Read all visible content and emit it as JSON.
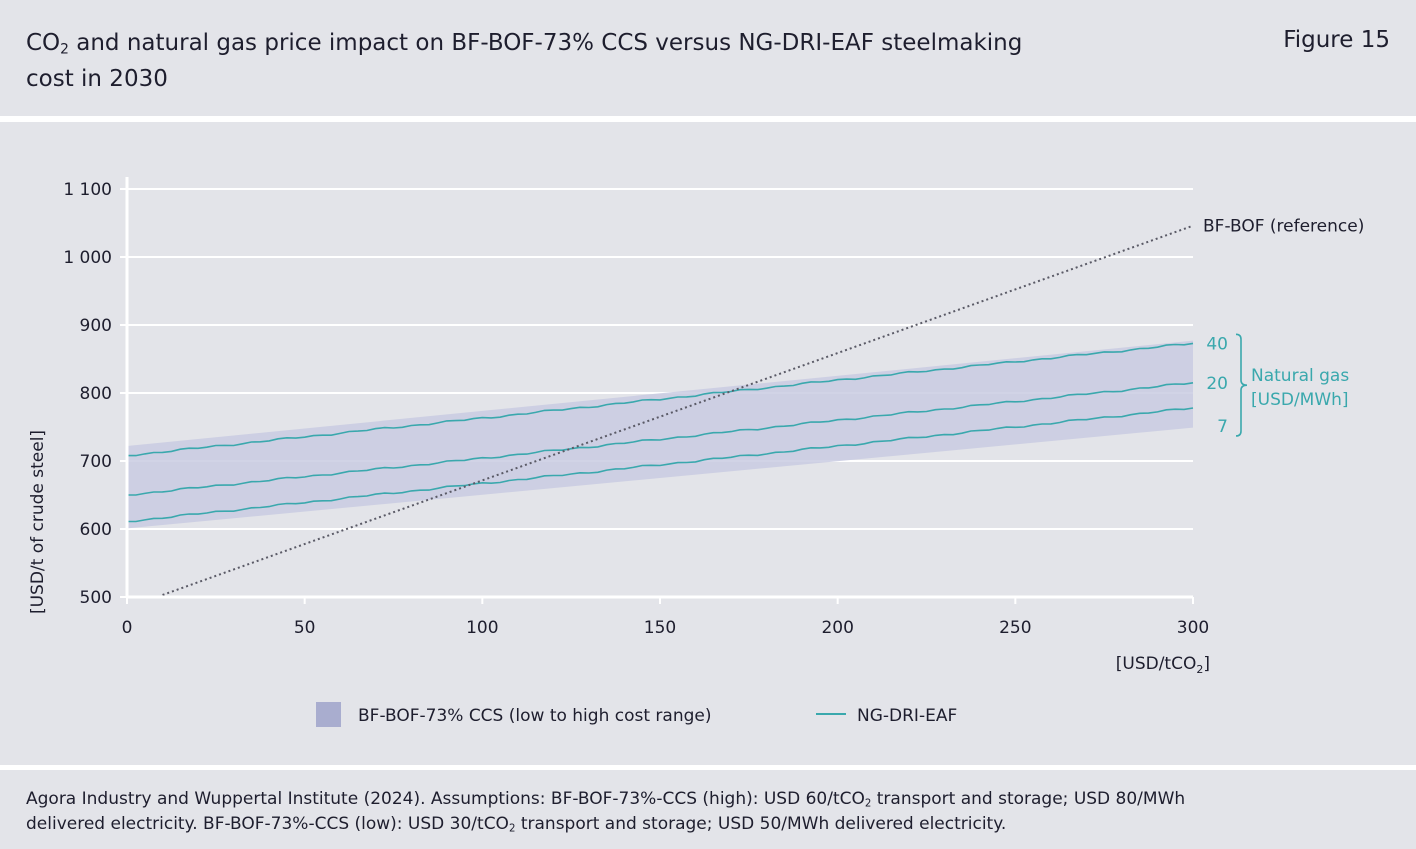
{
  "header": {
    "title_parts": [
      "CO",
      "2",
      " and natural gas price impact on BF-BOF-73% CCS versus NG-DRI-EAF steelmaking cost in 2030"
    ],
    "figure_label": "Figure 15"
  },
  "chart_data": {
    "type": "line",
    "xlabel": "[USD/tCO2]",
    "ylabel": "[USD/t of crude steel]",
    "xlim": [
      0,
      300
    ],
    "ylim": [
      500,
      1100
    ],
    "x_ticks": [
      0,
      50,
      100,
      150,
      200,
      250,
      300
    ],
    "x_tick_labels": [
      "0",
      "50",
      "100",
      "150",
      "200",
      "250",
      "300"
    ],
    "y_ticks": [
      500,
      600,
      700,
      800,
      900,
      1000,
      1100
    ],
    "y_tick_labels": [
      "500",
      "600",
      "700",
      "800",
      "900",
      "1 000",
      "1 100"
    ],
    "grid": "horizontal",
    "band": {
      "name": "BF-BOF-73% CCS (low to high cost range)",
      "x": [
        0,
        300
      ],
      "low": [
        601,
        749
      ],
      "high": [
        722,
        877
      ],
      "color": "#c9cbe2"
    },
    "series": [
      {
        "name": "NG-DRI-EAF",
        "label": "40",
        "x": [
          0,
          100,
          200,
          300
        ],
        "y": [
          708,
          763,
          819,
          873
        ],
        "color": "#3aa8ad"
      },
      {
        "name": "NG-DRI-EAF",
        "label": "20",
        "x": [
          0,
          100,
          200,
          300
        ],
        "y": [
          650,
          704,
          760,
          815
        ],
        "color": "#3aa8ad"
      },
      {
        "name": "NG-DRI-EAF",
        "label": "7",
        "x": [
          0,
          100,
          200,
          300
        ],
        "y": [
          611,
          667,
          722,
          778
        ],
        "color": "#3aa8ad"
      }
    ],
    "reference": {
      "name": "BF-BOF (reference)",
      "x": [
        10,
        300
      ],
      "y": [
        503,
        1046
      ],
      "color": "#5a5a66",
      "style": "dotted"
    },
    "bracket_label": [
      "Natural gas",
      "[USD/MWh]"
    ],
    "legend": {
      "position": "bottom",
      "items": [
        {
          "label": "BF-BOF-73% CCS (low to high cost range)",
          "swatch": "#a9adcf"
        },
        {
          "label": "NG-DRI-EAF",
          "swatch": "#3aa8ad"
        }
      ]
    }
  },
  "footer": {
    "line1_parts": [
      "Agora Industry and Wuppertal Institute (2024). Assumptions: BF-BOF-73%-CCS (high): USD 60/tCO",
      "2",
      " transport and storage; USD 80/MWh"
    ],
    "line2_parts": [
      "delivered electricity. BF-BOF-73%-CCS (low): USD 30/tCO",
      "2",
      " transport and storage; USD 50/MWh delivered electricity."
    ]
  }
}
